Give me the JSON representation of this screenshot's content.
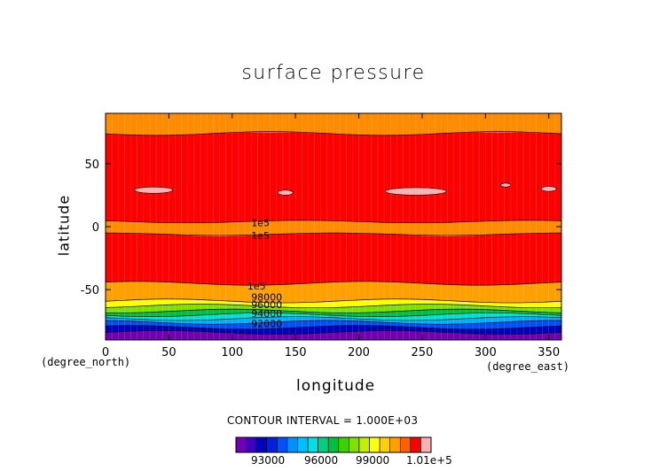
{
  "chart_data": {
    "type": "heatmap",
    "title": "surface pressure",
    "xlabel": "longitude",
    "ylabel": "latitude",
    "x_unit": "(degree_east)",
    "y_unit": "(degree_north)",
    "xlim": [
      0,
      360
    ],
    "ylim": [
      -90,
      90
    ],
    "x_ticks": [
      0,
      50,
      100,
      150,
      200,
      250,
      300,
      350
    ],
    "y_ticks": [
      -50,
      0,
      50
    ],
    "grid": true,
    "contour_interval_text": "CONTOUR INTERVAL = 1.000E+03",
    "contour_labels": [
      {
        "text": "1e5",
        "lon": 115,
        "lat": 3
      },
      {
        "text": "1e5",
        "lon": 115,
        "lat": -7
      },
      {
        "text": "1e5",
        "lon": 112,
        "lat": -47
      },
      {
        "text": "98000",
        "lon": 115,
        "lat": -56
      },
      {
        "text": "96000",
        "lon": 115,
        "lat": -62
      },
      {
        "text": "94000",
        "lon": 115,
        "lat": -69
      },
      {
        "text": "92000",
        "lon": 115,
        "lat": -77
      }
    ],
    "levels": [
      {
        "from": -90,
        "to": -84,
        "value": 92000,
        "color": "#7000b0"
      },
      {
        "from": -84,
        "to": -80,
        "value": 93000,
        "color": "#0000c0"
      },
      {
        "from": -80,
        "to": -76,
        "value": 94000,
        "color": "#0050ff"
      },
      {
        "from": -76,
        "to": -73,
        "value": 95000,
        "color": "#00b0ff"
      },
      {
        "from": -73,
        "to": -70,
        "value": 96000,
        "color": "#00e0d0"
      },
      {
        "from": -70,
        "to": -67,
        "value": 97000,
        "color": "#00c040"
      },
      {
        "from": -67,
        "to": -63,
        "value": 98000,
        "color": "#80e000"
      },
      {
        "from": -63,
        "to": -59,
        "value": 99000,
        "color": "#ffff00"
      },
      {
        "from": -59,
        "to": -45,
        "value": 100000,
        "color": "#ffa000"
      },
      {
        "from": -45,
        "to": -6,
        "value": 101000,
        "color": "#ff0000"
      },
      {
        "from": -6,
        "to": 4,
        "value": 100000,
        "color": "#ff8c00"
      },
      {
        "from": 4,
        "to": 74,
        "value": 101000,
        "color": "#ff0000"
      },
      {
        "from": 74,
        "to": 90,
        "value": 100000,
        "color": "#ff8c00"
      }
    ],
    "high_patches": [
      {
        "lon": 38,
        "lat": 29,
        "w": 30,
        "h": 5,
        "color": "#ffb0b0"
      },
      {
        "lon": 142,
        "lat": 27,
        "w": 12,
        "h": 4,
        "color": "#ffb0b0"
      },
      {
        "lon": 245,
        "lat": 28,
        "w": 48,
        "h": 6,
        "color": "#ffb0b0"
      },
      {
        "lon": 316,
        "lat": 33,
        "w": 8,
        "h": 3,
        "color": "#ffb0b0"
      },
      {
        "lon": 350,
        "lat": 30,
        "w": 12,
        "h": 4,
        "color": "#ffb0b0"
      }
    ],
    "colorbar": {
      "colors": [
        "#7000b0",
        "#4000c0",
        "#0000c0",
        "#0020e0",
        "#0050ff",
        "#0090ff",
        "#00c0ff",
        "#00e0e0",
        "#00d080",
        "#00c040",
        "#40d000",
        "#80e000",
        "#c0f000",
        "#ffff00",
        "#ffd000",
        "#ffa000",
        "#ff6000",
        "#ff0000",
        "#ffb0b0"
      ],
      "tick_labels": [
        "93000",
        "96000",
        "99000",
        "1.01e+5"
      ]
    }
  }
}
